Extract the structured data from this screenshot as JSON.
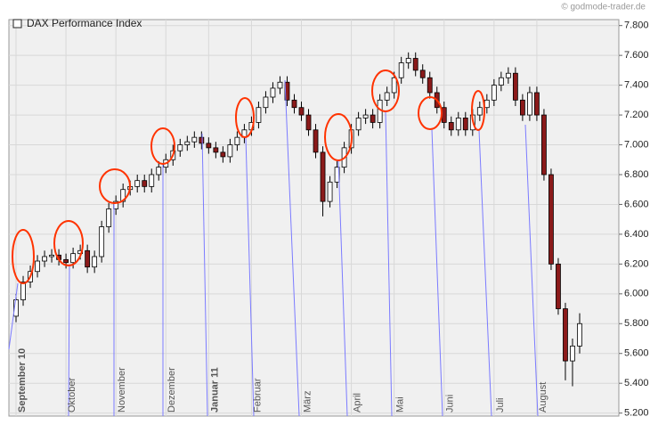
{
  "chart_data": {
    "type": "candlestick",
    "title": "DAX Performance Index",
    "source": "© godmode-trader.de",
    "categories": [
      "September 10",
      null,
      null,
      null,
      null,
      null,
      null,
      "Oktober",
      null,
      null,
      null,
      null,
      null,
      null,
      "November",
      null,
      null,
      null,
      null,
      null,
      null,
      "Dezember",
      null,
      null,
      null,
      null,
      null,
      "Januar 11",
      null,
      null,
      null,
      null,
      null,
      "Februar",
      null,
      null,
      null,
      null,
      null,
      null,
      "März",
      null,
      null,
      null,
      null,
      null,
      null,
      "April",
      null,
      null,
      null,
      null,
      null,
      "Mai",
      null,
      null,
      null,
      null,
      null,
      null,
      "Juni",
      null,
      null,
      null,
      null,
      null,
      null,
      "Juli",
      null,
      null,
      null,
      null,
      null,
      "August",
      null,
      null,
      null,
      null,
      null,
      null
    ],
    "open": [
      5850,
      5960,
      6080,
      6150,
      6220,
      6250,
      6260,
      6230,
      6210,
      6270,
      6290,
      6180,
      6250,
      6450,
      6570,
      6620,
      6700,
      6720,
      6760,
      6720,
      6800,
      6850,
      6900,
      6960,
      7000,
      7020,
      7050,
      7010,
      6980,
      6950,
      6920,
      7000,
      7050,
      7100,
      7150,
      7250,
      7320,
      7380,
      7420,
      7300,
      7250,
      7200,
      7100,
      6950,
      6620,
      6750,
      6850,
      6980,
      7100,
      7180,
      7200,
      7150,
      7300,
      7350,
      7450,
      7550,
      7580,
      7500,
      7450,
      7350,
      7250,
      7150,
      7100,
      7180,
      7100,
      7200,
      7250,
      7300,
      7400,
      7450,
      7480,
      7300,
      7200,
      7350,
      7200,
      6800,
      6200,
      5900,
      5550,
      5650
    ],
    "high": [
      6000,
      6120,
      6190,
      6260,
      6290,
      6300,
      6300,
      6270,
      6310,
      6330,
      6330,
      6290,
      6490,
      6610,
      6660,
      6740,
      6760,
      6800,
      6800,
      6840,
      6890,
      6940,
      7000,
      7040,
      7060,
      7090,
      7090,
      7050,
      7020,
      6990,
      7040,
      7090,
      7140,
      7190,
      7290,
      7360,
      7420,
      7460,
      7460,
      7340,
      7290,
      7240,
      7140,
      6990,
      6790,
      6890,
      7020,
      7140,
      7220,
      7240,
      7240,
      7340,
      7390,
      7490,
      7590,
      7620,
      7620,
      7540,
      7490,
      7390,
      7290,
      7190,
      7220,
      7220,
      7240,
      7290,
      7340,
      7440,
      7490,
      7520,
      7520,
      7340,
      7390,
      7390,
      7240,
      6840,
      6240,
      5940,
      5700,
      5870
    ],
    "low": [
      5810,
      5920,
      6040,
      6110,
      6180,
      6210,
      6190,
      6170,
      6170,
      6230,
      6140,
      6140,
      6210,
      6410,
      6530,
      6580,
      6660,
      6680,
      6680,
      6680,
      6760,
      6810,
      6860,
      6920,
      6960,
      6980,
      6970,
      6940,
      6910,
      6880,
      6880,
      6960,
      7010,
      7060,
      7110,
      7210,
      7280,
      7340,
      7260,
      7210,
      7160,
      7060,
      6910,
      6520,
      6580,
      6710,
      6810,
      6940,
      7060,
      7140,
      7110,
      7110,
      7260,
      7310,
      7410,
      7510,
      7460,
      7410,
      7310,
      7210,
      7110,
      7060,
      7060,
      7060,
      7060,
      7160,
      7210,
      7260,
      7360,
      7410,
      7260,
      7160,
      7160,
      7160,
      6760,
      6160,
      5860,
      5420,
      5380,
      5600
    ],
    "close": [
      5960,
      6080,
      6150,
      6220,
      6250,
      6260,
      6230,
      6210,
      6270,
      6290,
      6180,
      6250,
      6450,
      6570,
      6620,
      6700,
      6720,
      6760,
      6720,
      6800,
      6850,
      6900,
      6960,
      7000,
      7020,
      7050,
      7010,
      6980,
      6950,
      6920,
      7000,
      7050,
      7100,
      7150,
      7250,
      7320,
      7380,
      7420,
      7300,
      7250,
      7200,
      7100,
      6950,
      6620,
      6750,
      6850,
      6980,
      7100,
      7180,
      7200,
      7150,
      7300,
      7350,
      7450,
      7550,
      7580,
      7500,
      7450,
      7350,
      7250,
      7150,
      7100,
      7180,
      7100,
      7200,
      7250,
      7300,
      7400,
      7450,
      7480,
      7300,
      7200,
      7350,
      7200,
      6800,
      6200,
      5900,
      5550,
      5650,
      5800
    ],
    "up_color": "#ffffff",
    "down_color": "#8b1a1a",
    "ylim": [
      5180,
      7840
    ],
    "yticks": [
      {
        "value": 5200,
        "label": "5.200"
      },
      {
        "value": 5400,
        "label": "5.400"
      },
      {
        "value": 5600,
        "label": "5.600"
      },
      {
        "value": 5800,
        "label": "5.800"
      },
      {
        "value": 6000,
        "label": "6.000"
      },
      {
        "value": 6200,
        "label": "6.200"
      },
      {
        "value": 6400,
        "label": "6.400"
      },
      {
        "value": 6600,
        "label": "6.600"
      },
      {
        "value": 6800,
        "label": "6.800"
      },
      {
        "value": 7000,
        "label": "7.000"
      },
      {
        "value": 7200,
        "label": "7.200"
      },
      {
        "value": 7400,
        "label": "7.400"
      },
      {
        "value": 7600,
        "label": "7.600"
      },
      {
        "value": 7800,
        "label": "7.800"
      }
    ],
    "bold_categories": [
      "September 10",
      "Januar 11"
    ],
    "grid": true
  }
}
